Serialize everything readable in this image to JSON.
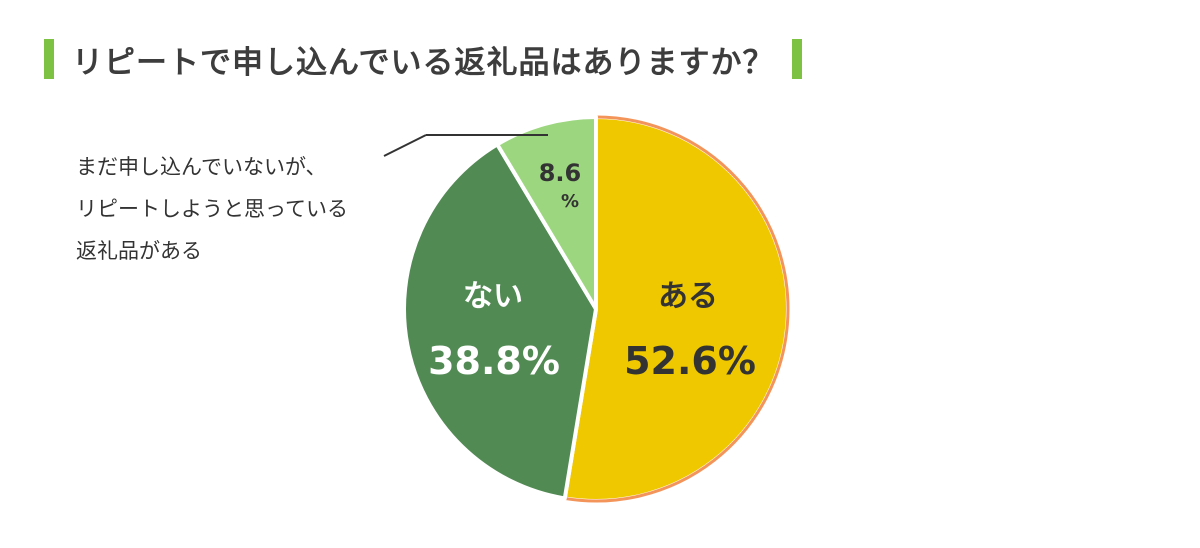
{
  "title": "リピートで申し込んでいる返礼品はありますか？",
  "colors": {
    "title_bar": "#7dc242",
    "title_text": "#3d3d3d",
    "slice_outline": "#ffffff",
    "yellow_outline": "#f3955a"
  },
  "note_lines": [
    "まだ申し込んでいないが、",
    "リピートしようと思っている",
    "返礼品がある"
  ],
  "chart_data": {
    "type": "pie",
    "unit": "%",
    "slices": [
      {
        "label": "ある",
        "value": 52.6,
        "display": "52.6%",
        "color": "#f0c800",
        "text_color": "#333333"
      },
      {
        "label": "ない",
        "value": 38.8,
        "display": "38.8%",
        "color": "#528a54",
        "text_color": "#ffffff"
      },
      {
        "label": "",
        "value": 8.6,
        "display_value": "8.6",
        "display_unit": "%",
        "color": "#9cd67f",
        "text_color": "#333333"
      }
    ]
  }
}
